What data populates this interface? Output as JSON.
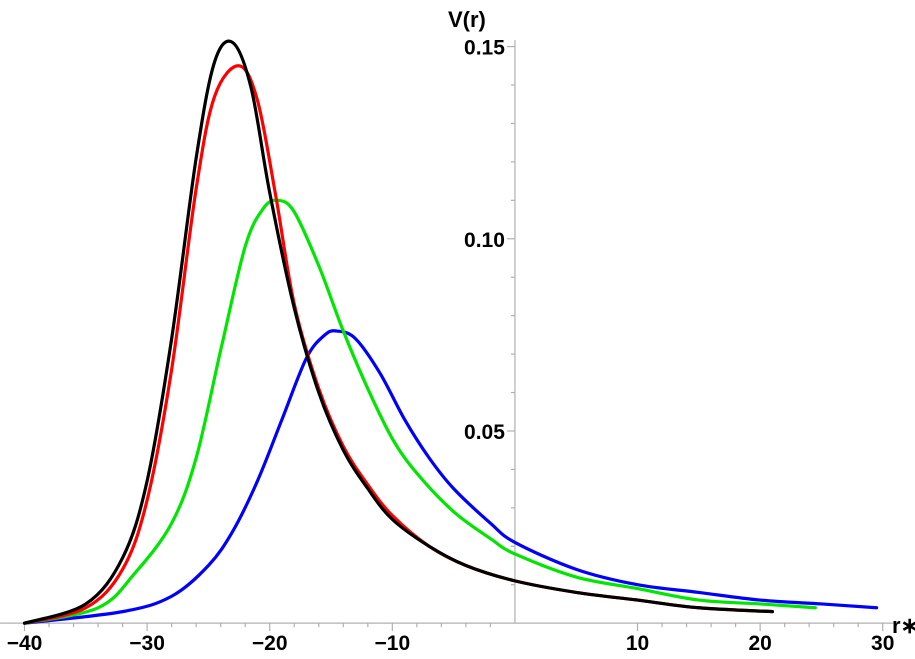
{
  "chart_data": {
    "type": "line",
    "xlabel": "r∗",
    "ylabel": "V(r)",
    "xlim": [
      -42,
      31
    ],
    "ylim": [
      -0.001,
      0.159
    ],
    "x_ticks": [
      -40,
      -30,
      -20,
      -10,
      10,
      20,
      30
    ],
    "x_tick_labels": [
      "−40",
      "−30",
      "−20",
      "−10",
      "10",
      "20",
      "30"
    ],
    "y_ticks": [
      0.05,
      0.1,
      0.15
    ],
    "y_tick_labels": [
      "0.05",
      "0.10",
      "0.15"
    ],
    "grid": false,
    "series": [
      {
        "color": "#000000",
        "x": [
          -40,
          -35,
          -32,
          -30,
          -28,
          -26,
          -24.5,
          -23,
          -21.5,
          -20,
          -18,
          -16,
          -14,
          -12,
          -10,
          -7,
          -4,
          0,
          5,
          10,
          15,
          21
        ],
        "y": [
          0.0,
          0.005,
          0.017,
          0.037,
          0.074,
          0.121,
          0.146,
          0.151,
          0.139,
          0.112,
          0.082,
          0.06,
          0.045,
          0.035,
          0.027,
          0.02,
          0.015,
          0.011,
          0.008,
          0.006,
          0.004,
          0.003
        ]
      },
      {
        "color": "#ff0000",
        "x": [
          -40,
          -35,
          -32,
          -30,
          -28,
          -26,
          -24.5,
          -22.5,
          -21,
          -19.5,
          -18,
          -16,
          -14,
          -12,
          -10,
          -7,
          -4,
          0,
          5,
          10,
          15,
          21
        ],
        "y": [
          0.0,
          0.004,
          0.014,
          0.032,
          0.066,
          0.113,
          0.137,
          0.145,
          0.136,
          0.111,
          0.083,
          0.061,
          0.046,
          0.036,
          0.028,
          0.02,
          0.015,
          0.011,
          0.008,
          0.006,
          0.004,
          0.003
        ]
      },
      {
        "color": "#00e600",
        "x": [
          -40,
          -34,
          -31,
          -28,
          -26,
          -24,
          -22,
          -20.5,
          -19.3,
          -18,
          -16,
          -14,
          -12,
          -10,
          -8,
          -5,
          -2,
          0,
          5,
          10,
          15,
          20,
          24.5
        ],
        "y": [
          0.0,
          0.004,
          0.013,
          0.026,
          0.043,
          0.071,
          0.098,
          0.108,
          0.11,
          0.107,
          0.093,
          0.076,
          0.061,
          0.048,
          0.039,
          0.029,
          0.022,
          0.018,
          0.012,
          0.009,
          0.006,
          0.005,
          0.004
        ]
      },
      {
        "color": "#0000ff",
        "x": [
          -40,
          -32,
          -28,
          -25,
          -23,
          -21,
          -19,
          -17,
          -15.5,
          -14.5,
          -13,
          -11,
          -9,
          -7,
          -5,
          -2,
          0,
          5,
          10,
          15,
          20,
          25,
          29.5
        ],
        "y": [
          0.0,
          0.003,
          0.007,
          0.015,
          0.024,
          0.037,
          0.053,
          0.069,
          0.075,
          0.076,
          0.074,
          0.065,
          0.053,
          0.043,
          0.035,
          0.026,
          0.021,
          0.014,
          0.01,
          0.008,
          0.006,
          0.005,
          0.004
        ]
      }
    ]
  }
}
